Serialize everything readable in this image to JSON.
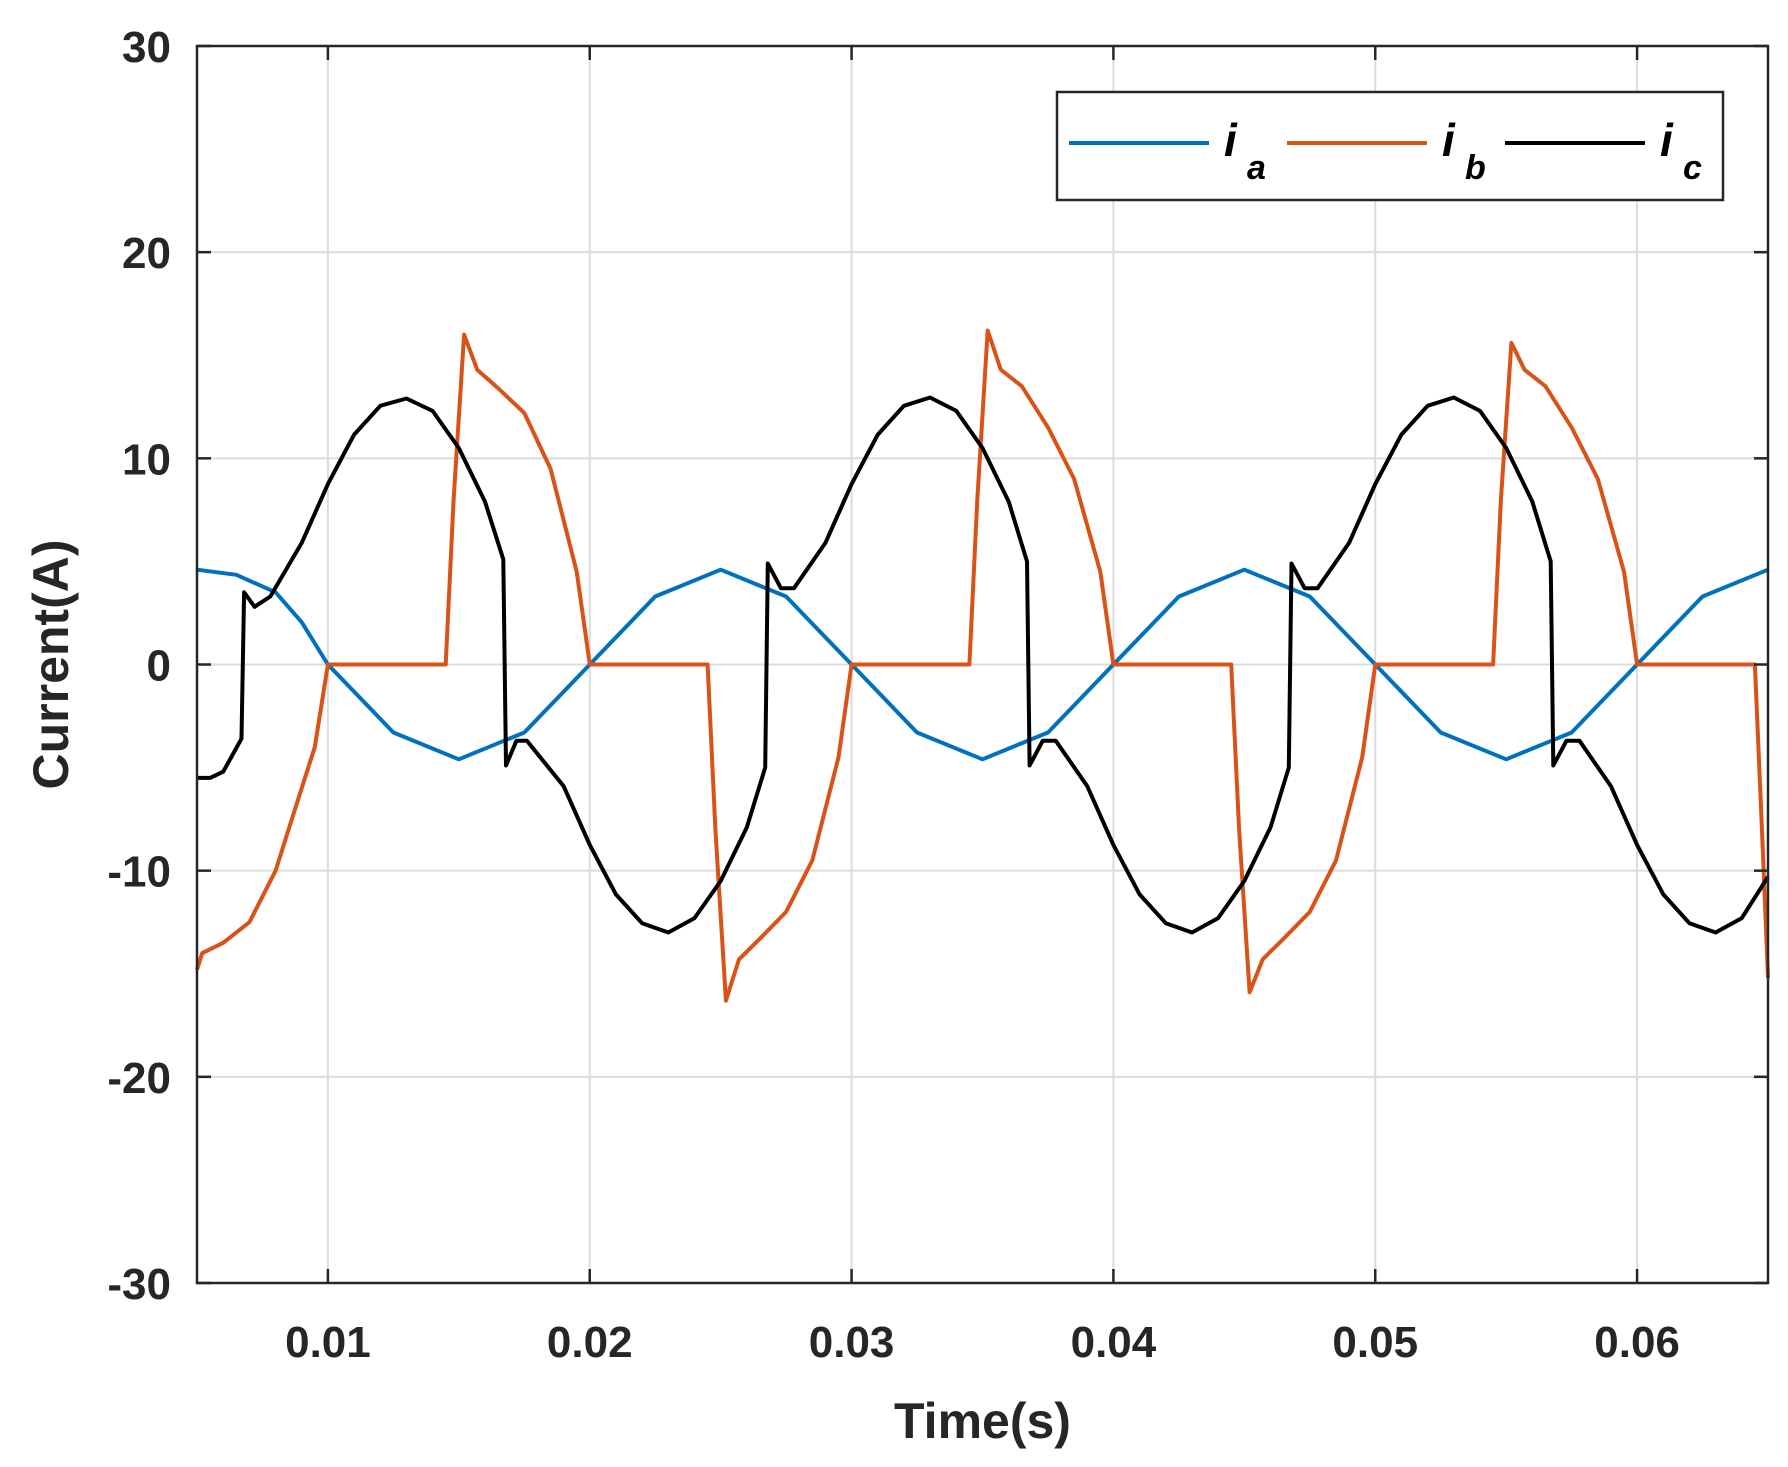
{
  "chart_data": {
    "type": "line",
    "xlabel": "Time(s)",
    "ylabel": "Current(A)",
    "xlim": [
      0.005,
      0.065
    ],
    "ylim": [
      -30,
      30
    ],
    "xticks": [
      0.01,
      0.02,
      0.03,
      0.04,
      0.05,
      0.06
    ],
    "xtick_labels": [
      "0.01",
      "0.02",
      "0.03",
      "0.04",
      "0.05",
      "0.06"
    ],
    "yticks": [
      -30,
      -20,
      -10,
      0,
      10,
      20,
      30
    ],
    "ytick_labels": [
      "-30",
      "-20",
      "-10",
      "0",
      "10",
      "20",
      "30"
    ],
    "grid": true,
    "legend": {
      "placement": "top-right",
      "orientation": "horizontal"
    },
    "series": [
      {
        "name": "i",
        "subscript": "a",
        "color": "#0072BD",
        "points": [
          [
            0.005,
            4.6
          ],
          [
            0.0065,
            4.35
          ],
          [
            0.008,
            3.5
          ],
          [
            0.009,
            2.05
          ],
          [
            0.01,
            0
          ],
          [
            0.0125,
            -3.3
          ],
          [
            0.015,
            -4.6
          ],
          [
            0.0175,
            -3.3
          ],
          [
            0.02,
            0
          ],
          [
            0.0225,
            3.3
          ],
          [
            0.025,
            4.6
          ],
          [
            0.0275,
            3.3
          ],
          [
            0.03,
            0
          ],
          [
            0.0325,
            -3.3
          ],
          [
            0.035,
            -4.6
          ],
          [
            0.0375,
            -3.3
          ],
          [
            0.04,
            0
          ],
          [
            0.0425,
            3.3
          ],
          [
            0.045,
            4.6
          ],
          [
            0.0475,
            3.3
          ],
          [
            0.05,
            0
          ],
          [
            0.0525,
            -3.3
          ],
          [
            0.055,
            -4.6
          ],
          [
            0.0575,
            -3.3
          ],
          [
            0.06,
            0
          ],
          [
            0.0625,
            3.3
          ],
          [
            0.065,
            4.6
          ]
        ]
      },
      {
        "name": "i",
        "subscript": "b",
        "color": "#D95319",
        "points": [
          [
            0.005,
            -14.8
          ],
          [
            0.0052,
            -14.0
          ],
          [
            0.006,
            -13.5
          ],
          [
            0.007,
            -12.5
          ],
          [
            0.008,
            -10
          ],
          [
            0.0085,
            -8
          ],
          [
            0.009,
            -6
          ],
          [
            0.0095,
            -4
          ],
          [
            0.01,
            0
          ],
          [
            0.0145,
            0
          ],
          [
            0.0148,
            8
          ],
          [
            0.0152,
            16.0
          ],
          [
            0.0157,
            14.3
          ],
          [
            0.0165,
            13.4
          ],
          [
            0.0175,
            12.2
          ],
          [
            0.0185,
            9.5
          ],
          [
            0.0195,
            4.5
          ],
          [
            0.02,
            0
          ],
          [
            0.0245,
            0
          ],
          [
            0.0248,
            -8
          ],
          [
            0.0252,
            -16.3
          ],
          [
            0.0257,
            -14.3
          ],
          [
            0.0265,
            -13.3
          ],
          [
            0.0275,
            -12.0
          ],
          [
            0.0285,
            -9.5
          ],
          [
            0.0295,
            -4.5
          ],
          [
            0.03,
            0
          ],
          [
            0.0345,
            0
          ],
          [
            0.0348,
            8
          ],
          [
            0.0352,
            16.2
          ],
          [
            0.0357,
            14.3
          ],
          [
            0.0365,
            13.5
          ],
          [
            0.0375,
            11.5
          ],
          [
            0.0385,
            9.0
          ],
          [
            0.0395,
            4.5
          ],
          [
            0.04,
            0
          ],
          [
            0.0445,
            0
          ],
          [
            0.0448,
            -8
          ],
          [
            0.0452,
            -15.9
          ],
          [
            0.0457,
            -14.3
          ],
          [
            0.0465,
            -13.3
          ],
          [
            0.0475,
            -12.0
          ],
          [
            0.0485,
            -9.5
          ],
          [
            0.0495,
            -4.5
          ],
          [
            0.05,
            0
          ],
          [
            0.0545,
            0
          ],
          [
            0.0548,
            8
          ],
          [
            0.0552,
            15.6
          ],
          [
            0.0557,
            14.3
          ],
          [
            0.0565,
            13.5
          ],
          [
            0.0575,
            11.5
          ],
          [
            0.0585,
            9.0
          ],
          [
            0.0595,
            4.5
          ],
          [
            0.06,
            0
          ],
          [
            0.0645,
            0
          ],
          [
            0.0648,
            -9
          ],
          [
            0.065,
            -15.2
          ]
        ]
      },
      {
        "name": "i",
        "subscript": "c",
        "color": "#000000",
        "points": [
          [
            0.005,
            -5.5
          ],
          [
            0.0055,
            -5.5
          ],
          [
            0.006,
            -5.2
          ],
          [
            0.0067,
            -3.6
          ],
          [
            0.0068,
            3.5
          ],
          [
            0.0072,
            2.8
          ],
          [
            0.0078,
            3.3
          ],
          [
            0.009,
            5.9
          ],
          [
            0.01,
            8.75
          ],
          [
            0.011,
            11.15
          ],
          [
            0.012,
            12.55
          ],
          [
            0.013,
            12.9
          ],
          [
            0.014,
            12.3
          ],
          [
            0.015,
            10.5
          ],
          [
            0.016,
            7.9
          ],
          [
            0.0167,
            5.1
          ],
          [
            0.0168,
            -4.9
          ],
          [
            0.0172,
            -3.7
          ],
          [
            0.0176,
            -3.7
          ],
          [
            0.019,
            -5.9
          ],
          [
            0.02,
            -8.75
          ],
          [
            0.021,
            -11.15
          ],
          [
            0.022,
            -12.55
          ],
          [
            0.023,
            -13.0
          ],
          [
            0.024,
            -12.3
          ],
          [
            0.025,
            -10.5
          ],
          [
            0.026,
            -7.9
          ],
          [
            0.0267,
            -5.0
          ],
          [
            0.0268,
            4.9
          ],
          [
            0.0273,
            3.7
          ],
          [
            0.0278,
            3.7
          ],
          [
            0.029,
            5.9
          ],
          [
            0.03,
            8.75
          ],
          [
            0.031,
            11.15
          ],
          [
            0.032,
            12.55
          ],
          [
            0.033,
            12.95
          ],
          [
            0.034,
            12.3
          ],
          [
            0.035,
            10.5
          ],
          [
            0.036,
            7.9
          ],
          [
            0.0367,
            5.0
          ],
          [
            0.0368,
            -4.9
          ],
          [
            0.0373,
            -3.7
          ],
          [
            0.0378,
            -3.7
          ],
          [
            0.039,
            -5.9
          ],
          [
            0.04,
            -8.75
          ],
          [
            0.041,
            -11.15
          ],
          [
            0.042,
            -12.55
          ],
          [
            0.043,
            -13.0
          ],
          [
            0.044,
            -12.3
          ],
          [
            0.045,
            -10.5
          ],
          [
            0.046,
            -7.9
          ],
          [
            0.0467,
            -5.0
          ],
          [
            0.0468,
            4.9
          ],
          [
            0.0473,
            3.7
          ],
          [
            0.0478,
            3.7
          ],
          [
            0.049,
            5.9
          ],
          [
            0.05,
            8.75
          ],
          [
            0.051,
            11.15
          ],
          [
            0.052,
            12.55
          ],
          [
            0.053,
            12.95
          ],
          [
            0.054,
            12.3
          ],
          [
            0.055,
            10.5
          ],
          [
            0.056,
            7.9
          ],
          [
            0.0567,
            5.0
          ],
          [
            0.0568,
            -4.9
          ],
          [
            0.0573,
            -3.7
          ],
          [
            0.0578,
            -3.7
          ],
          [
            0.059,
            -5.9
          ],
          [
            0.06,
            -8.75
          ],
          [
            0.061,
            -11.15
          ],
          [
            0.062,
            -12.55
          ],
          [
            0.063,
            -13.0
          ],
          [
            0.064,
            -12.3
          ],
          [
            0.065,
            -10.3
          ]
        ]
      }
    ]
  }
}
